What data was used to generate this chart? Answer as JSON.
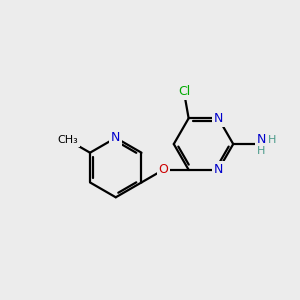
{
  "background_color": "#ececec",
  "atom_colors": {
    "C": "#000000",
    "N": "#0000cc",
    "O": "#cc0000",
    "Cl": "#00aa00",
    "H": "#4a9a8a"
  },
  "bond_color": "#000000",
  "bond_width": 1.6,
  "figsize": [
    3.0,
    3.0
  ],
  "dpi": 100
}
